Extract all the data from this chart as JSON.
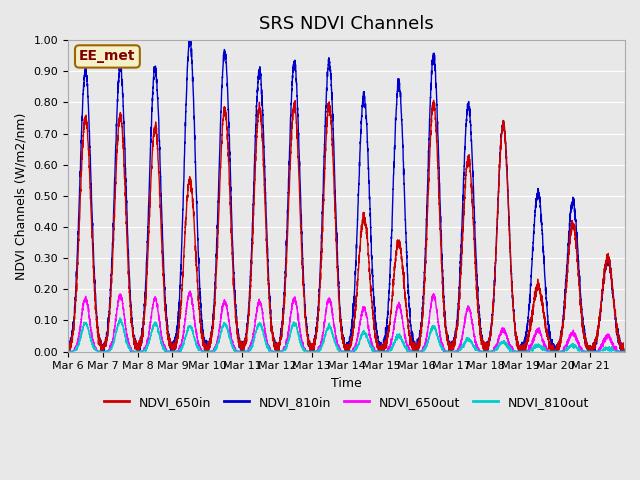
{
  "title": "SRS NDVI Channels",
  "xlabel": "Time",
  "ylabel": "NDVI Channels (W/m2/nm)",
  "ylim": [
    0.0,
    1.0
  ],
  "yticks": [
    0.0,
    0.1,
    0.2,
    0.3,
    0.4,
    0.5,
    0.6,
    0.7,
    0.8,
    0.9,
    1.0
  ],
  "annotation": "EE_met",
  "bg_color": "#e8e8e8",
  "plot_bg_color": "#e8e8e8",
  "legend": [
    {
      "label": "NDVI_650in",
      "color": "#cc0000"
    },
    {
      "label": "NDVI_810in",
      "color": "#0000cc"
    },
    {
      "label": "NDVI_650out",
      "color": "#ff00ff"
    },
    {
      "label": "NDVI_810out",
      "color": "#00cccc"
    }
  ],
  "xtick_labels": [
    "Mar 6",
    "Mar 7",
    "Mar 8",
    "Mar 9",
    "Mar 10",
    "Mar 11",
    "Mar 12",
    "Mar 13",
    "Mar 14",
    "Mar 15",
    "Mar 16",
    "Mar 17",
    "Mar 18",
    "Mar 19",
    "Mar 20",
    "Mar 21"
  ],
  "day_peaks_650in": [
    0.75,
    0.76,
    0.72,
    0.55,
    0.78,
    0.78,
    0.79,
    0.79,
    0.43,
    0.35,
    0.8,
    0.62,
    0.73,
    0.21,
    0.41,
    0.3
  ],
  "day_peaks_810in": [
    0.9,
    0.91,
    0.91,
    1.0,
    0.96,
    0.9,
    0.93,
    0.93,
    0.82,
    0.86,
    0.95,
    0.79,
    0.73,
    0.51,
    0.48,
    0.29
  ],
  "day_peaks_650out": [
    0.17,
    0.18,
    0.17,
    0.19,
    0.16,
    0.16,
    0.17,
    0.17,
    0.14,
    0.15,
    0.18,
    0.14,
    0.07,
    0.07,
    0.06,
    0.05
  ],
  "day_peaks_810out": [
    0.09,
    0.1,
    0.09,
    0.08,
    0.09,
    0.09,
    0.09,
    0.08,
    0.06,
    0.05,
    0.08,
    0.04,
    0.03,
    0.02,
    0.02,
    0.01
  ]
}
